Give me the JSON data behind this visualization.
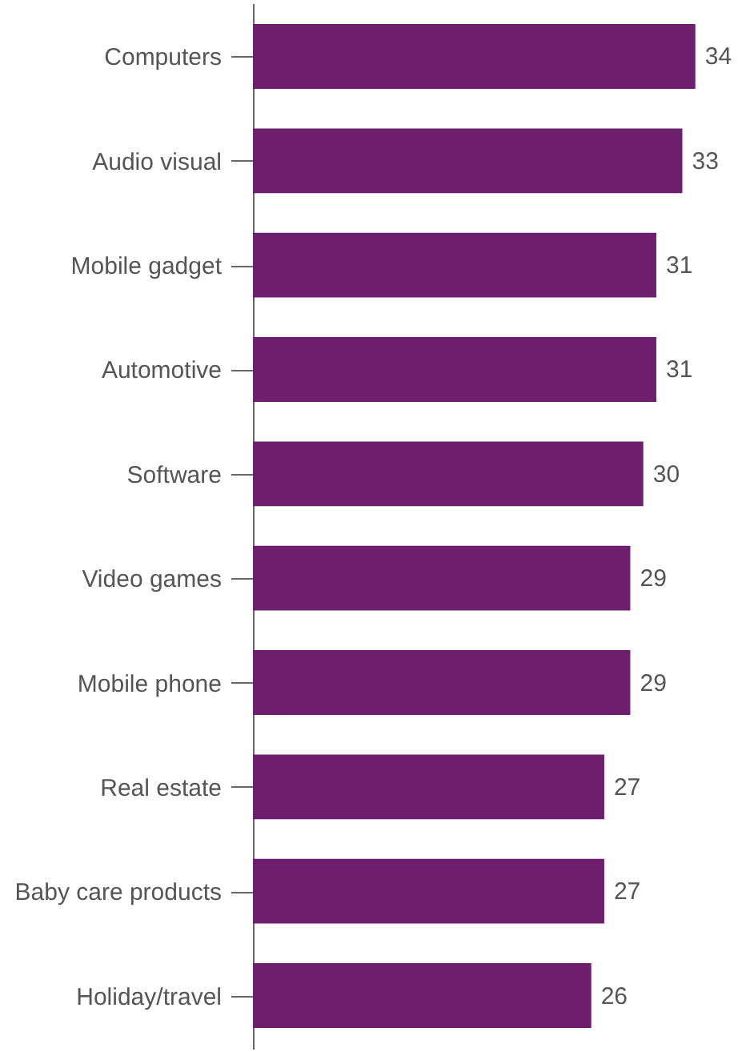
{
  "chart_data": {
    "type": "bar",
    "orientation": "horizontal",
    "categories": [
      "Computers",
      "Audio visual",
      "Mobile gadget",
      "Automotive",
      "Software",
      "Video games",
      "Mobile phone",
      "Real estate",
      "Baby care products",
      "Holiday/travel"
    ],
    "values": [
      34,
      33,
      31,
      31,
      30,
      29,
      29,
      27,
      27,
      26
    ],
    "color": "#6d1f6e",
    "data_labels": true
  }
}
